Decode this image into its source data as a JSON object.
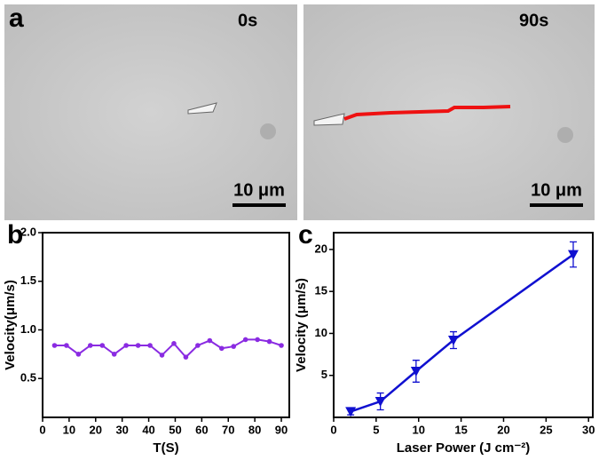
{
  "figure_a": {
    "panel_label": "a",
    "images": [
      {
        "time": "0s",
        "scale_bar": "10 μm"
      },
      {
        "time": "90s",
        "scale_bar": "10 μm"
      }
    ]
  },
  "chart_data": [
    {
      "type": "line",
      "panel_label": "b",
      "y_label": "Velocity(μm/s)",
      "x_label": "T(S)",
      "x": [
        4.5,
        9,
        13.5,
        18,
        22.5,
        27,
        31.5,
        36,
        40.5,
        45,
        49.5,
        54,
        58.5,
        63,
        67.5,
        72,
        76.5,
        81,
        85.5,
        90
      ],
      "values": [
        0.84,
        0.84,
        0.75,
        0.84,
        0.84,
        0.75,
        0.84,
        0.84,
        0.84,
        0.74,
        0.86,
        0.72,
        0.84,
        0.89,
        0.81,
        0.83,
        0.9,
        0.9,
        0.88,
        0.84
      ],
      "color": "#8a2be2",
      "marker": "circle",
      "xlim": [
        0,
        93
      ],
      "xticks": [
        0,
        10,
        20,
        30,
        40,
        50,
        60,
        70,
        80,
        90
      ],
      "ylim": [
        0.1,
        2.0
      ],
      "yticks": [
        0.5,
        {
          "value": 1.0,
          "label": "1.0"
        },
        1.5,
        {
          "value": 2.0,
          "label": "2.0"
        }
      ]
    },
    {
      "type": "line",
      "panel_label": "c",
      "y_label": "Velocity (μm/s)",
      "x_label": "Laser Power (J cm⁻²)",
      "x": [
        2,
        5.5,
        9.7,
        14.1,
        28.2
      ],
      "values": [
        0.7,
        1.9,
        5.5,
        9.2,
        19.4
      ],
      "errors": [
        0.4,
        1.0,
        1.3,
        1.0,
        1.5
      ],
      "color": "#1010d0",
      "marker": "triangle-down",
      "xlim": [
        0,
        30.5
      ],
      "xticks": [
        0,
        5,
        10,
        15,
        20,
        25,
        30
      ],
      "ylim": [
        0,
        22
      ],
      "yticks": [
        5,
        10,
        15,
        20
      ]
    }
  ]
}
